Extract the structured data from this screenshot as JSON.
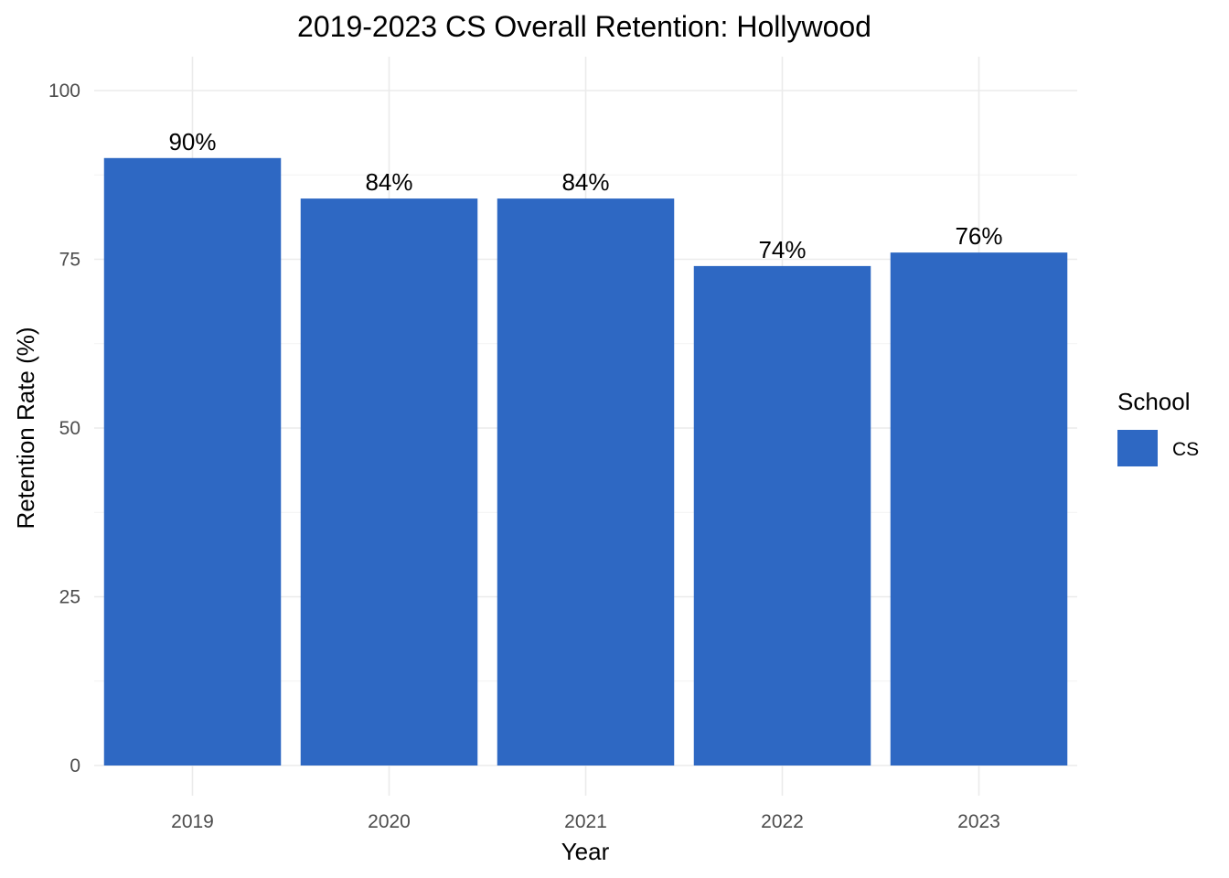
{
  "chart_data": {
    "type": "bar",
    "title": "2019-2023 CS Overall Retention: Hollywood",
    "xlabel": "Year",
    "ylabel": "Retention Rate (%)",
    "categories": [
      "2019",
      "2020",
      "2021",
      "2022",
      "2023"
    ],
    "series": [
      {
        "name": "CS",
        "values": [
          90,
          84,
          84,
          74,
          76
        ],
        "color": "#2e68c3"
      }
    ],
    "data_labels": [
      "90%",
      "84%",
      "84%",
      "74%",
      "76%"
    ],
    "ylim": [
      0,
      100
    ],
    "yticks": [
      0,
      25,
      50,
      75,
      100
    ],
    "ytick_labels": [
      "0",
      "25",
      "50",
      "75",
      "100"
    ],
    "grid": true,
    "legend": {
      "title": "School",
      "position": "right",
      "entries": [
        "CS"
      ]
    }
  }
}
